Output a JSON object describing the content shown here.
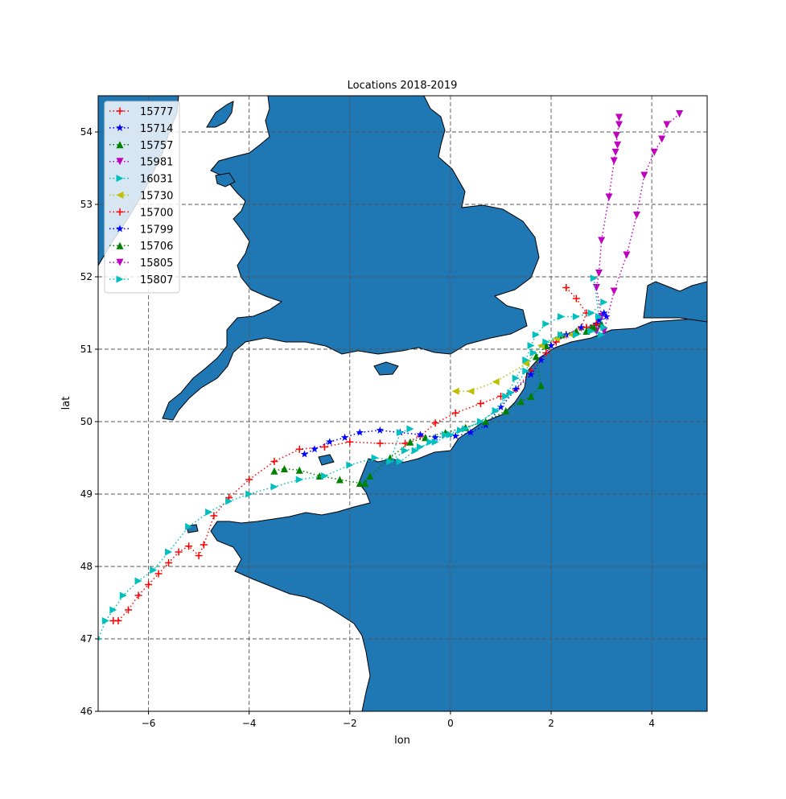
{
  "chart_data": {
    "type": "line",
    "title": "Locations 2018-2019",
    "xlabel": "lon",
    "ylabel": "lat",
    "xlim": [
      -7,
      5.1
    ],
    "ylim": [
      46,
      54.5
    ],
    "xticks": [
      -6,
      -4,
      -2,
      0,
      2,
      4
    ],
    "yticks": [
      46,
      47,
      48,
      49,
      50,
      51,
      52,
      53,
      54
    ],
    "grid": true,
    "legend_position": "upper-left",
    "colors": {
      "land": "#1f77b4",
      "sea": "#ffffff"
    },
    "series": [
      {
        "name": "15777",
        "color": "#ff0000",
        "marker": "plus",
        "points": [
          [
            2.3,
            51.85
          ],
          [
            2.5,
            51.7
          ],
          [
            2.7,
            51.5
          ],
          [
            2.6,
            51.3
          ],
          [
            2.3,
            51.2
          ],
          [
            2.1,
            51.1
          ],
          [
            1.9,
            50.95
          ],
          [
            1.6,
            50.7
          ],
          [
            1.3,
            50.45
          ],
          [
            1.0,
            50.35
          ],
          [
            0.6,
            50.25
          ],
          [
            0.1,
            50.12
          ],
          [
            -0.3,
            49.98
          ],
          [
            -0.6,
            49.8
          ],
          [
            -0.9,
            49.7
          ],
          [
            -1.4,
            49.7
          ],
          [
            -2.0,
            49.72
          ],
          [
            -2.5,
            49.65
          ],
          [
            -3.0,
            49.62
          ],
          [
            -3.5,
            49.45
          ],
          [
            -4.0,
            49.2
          ],
          [
            -4.4,
            48.95
          ],
          [
            -4.7,
            48.7
          ],
          [
            -4.9,
            48.3
          ],
          [
            -5.0,
            48.15
          ],
          [
            -5.2,
            48.28
          ],
          [
            -5.4,
            48.2
          ],
          [
            -5.6,
            48.05
          ],
          [
            -5.8,
            47.9
          ],
          [
            -6.0,
            47.75
          ],
          [
            -6.2,
            47.6
          ],
          [
            -6.4,
            47.4
          ],
          [
            -6.6,
            47.25
          ],
          [
            -6.7,
            47.25
          ]
        ]
      },
      {
        "name": "15714",
        "color": "#0000ff",
        "marker": "star",
        "points": [
          [
            3.1,
            51.45
          ],
          [
            2.9,
            51.35
          ],
          [
            2.6,
            51.3
          ],
          [
            2.3,
            51.2
          ],
          [
            2.0,
            51.05
          ],
          [
            1.8,
            50.85
          ],
          [
            1.6,
            50.65
          ],
          [
            1.3,
            50.45
          ],
          [
            1.0,
            50.2
          ],
          [
            0.7,
            49.95
          ],
          [
            0.4,
            49.85
          ],
          [
            0.1,
            49.8
          ],
          [
            -0.3,
            49.78
          ],
          [
            -0.6,
            49.82
          ],
          [
            -1.0,
            49.85
          ],
          [
            -1.4,
            49.88
          ],
          [
            -1.8,
            49.85
          ],
          [
            -2.1,
            49.78
          ],
          [
            -2.4,
            49.72
          ],
          [
            -2.7,
            49.62
          ],
          [
            -2.9,
            49.55
          ]
        ]
      },
      {
        "name": "15757",
        "color": "#008000",
        "marker": "triangle-up",
        "points": [
          [
            3.0,
            51.35
          ],
          [
            2.8,
            51.3
          ],
          [
            2.5,
            51.25
          ],
          [
            2.2,
            51.2
          ],
          [
            1.9,
            51.05
          ],
          [
            1.7,
            50.9
          ],
          [
            1.8,
            50.5
          ],
          [
            1.6,
            50.35
          ],
          [
            1.4,
            50.28
          ],
          [
            1.1,
            50.15
          ],
          [
            0.7,
            50.0
          ],
          [
            0.3,
            49.92
          ],
          [
            -0.1,
            49.85
          ],
          [
            -0.5,
            49.78
          ],
          [
            -0.8,
            49.72
          ],
          [
            -1.2,
            49.5
          ],
          [
            -1.6,
            49.25
          ],
          [
            -1.7,
            49.15
          ],
          [
            -1.8,
            49.15
          ],
          [
            -2.2,
            49.2
          ],
          [
            -2.6,
            49.25
          ],
          [
            -3.0,
            49.33
          ],
          [
            -3.3,
            49.35
          ],
          [
            -3.5,
            49.32
          ]
        ]
      },
      {
        "name": "15981",
        "color": "#bf00bf",
        "marker": "triangle-down",
        "points": [
          [
            3.35,
            54.2
          ],
          [
            3.35,
            54.1
          ],
          [
            3.3,
            53.95
          ],
          [
            3.32,
            53.82
          ],
          [
            3.28,
            53.72
          ],
          [
            3.25,
            53.6
          ],
          [
            3.15,
            53.1
          ],
          [
            3.0,
            52.5
          ],
          [
            2.95,
            52.05
          ],
          [
            2.9,
            51.85
          ],
          [
            3.0,
            51.45
          ],
          [
            2.9,
            51.25
          ]
        ]
      },
      {
        "name": "16031",
        "color": "#00bfbf",
        "marker": "triangle-right",
        "points": [
          [
            3.05,
            51.65
          ],
          [
            2.8,
            51.5
          ],
          [
            2.5,
            51.45
          ],
          [
            2.2,
            51.45
          ],
          [
            1.9,
            51.35
          ],
          [
            1.7,
            51.2
          ],
          [
            1.6,
            51.05
          ],
          [
            1.5,
            50.85
          ],
          [
            1.3,
            50.6
          ],
          [
            1.1,
            50.35
          ],
          [
            0.9,
            50.15
          ],
          [
            0.6,
            50.0
          ],
          [
            0.3,
            49.9
          ],
          [
            0.0,
            49.82
          ],
          [
            -0.3,
            49.72
          ],
          [
            -0.6,
            49.65
          ],
          [
            -0.9,
            49.6
          ],
          [
            -1.2,
            49.45
          ],
          [
            -1.0,
            49.85
          ],
          [
            -0.8,
            49.9
          ]
        ]
      },
      {
        "name": "15730",
        "color": "#bfbf00",
        "marker": "triangle-left",
        "points": [
          [
            0.1,
            50.42
          ],
          [
            0.4,
            50.42
          ],
          [
            0.9,
            50.55
          ],
          [
            1.5,
            50.8
          ],
          [
            1.8,
            51.05
          ],
          [
            2.1,
            51.15
          ],
          [
            2.4,
            51.2
          ]
        ]
      },
      {
        "name": "15700",
        "color": "#ff0000",
        "marker": "plus",
        "points": [
          [
            2.9,
            51.35
          ],
          [
            2.7,
            51.3
          ]
        ]
      },
      {
        "name": "15799",
        "color": "#0000ff",
        "marker": "star",
        "points": [
          [
            3.05,
            51.5
          ],
          [
            2.95,
            51.4
          ]
        ]
      },
      {
        "name": "15706",
        "color": "#008000",
        "marker": "triangle-up",
        "points": [
          [
            2.85,
            51.3
          ],
          [
            2.7,
            51.25
          ]
        ]
      },
      {
        "name": "15805",
        "color": "#bf00bf",
        "marker": "triangle-down",
        "points": [
          [
            4.55,
            54.25
          ],
          [
            4.3,
            54.1
          ],
          [
            4.2,
            53.9
          ],
          [
            4.05,
            53.72
          ],
          [
            3.85,
            53.4
          ],
          [
            3.7,
            52.85
          ],
          [
            3.5,
            52.3
          ],
          [
            3.25,
            51.8
          ],
          [
            3.05,
            51.25
          ]
        ]
      },
      {
        "name": "15807",
        "color": "#00bfbf",
        "marker": "triangle-right",
        "points": [
          [
            2.85,
            51.98
          ],
          [
            2.95,
            51.45
          ],
          [
            3.05,
            51.3
          ],
          [
            3.0,
            51.2
          ],
          [
            2.8,
            51.25
          ],
          [
            2.5,
            51.2
          ],
          [
            2.2,
            51.2
          ],
          [
            1.9,
            51.1
          ],
          [
            1.65,
            50.95
          ],
          [
            1.5,
            50.7
          ],
          [
            1.2,
            50.4
          ],
          [
            0.9,
            50.15
          ],
          [
            0.6,
            50.0
          ],
          [
            0.2,
            49.88
          ],
          [
            -0.1,
            49.82
          ],
          [
            -0.4,
            49.72
          ],
          [
            -0.7,
            49.6
          ],
          [
            -1.0,
            49.45
          ],
          [
            -1.5,
            49.5
          ],
          [
            -2.0,
            49.4
          ],
          [
            -2.5,
            49.25
          ],
          [
            -3.0,
            49.2
          ],
          [
            -3.5,
            49.1
          ],
          [
            -4.0,
            49.0
          ],
          [
            -4.4,
            48.9
          ],
          [
            -4.8,
            48.75
          ],
          [
            -5.2,
            48.55
          ],
          [
            -5.6,
            48.2
          ],
          [
            -5.9,
            47.95
          ],
          [
            -6.2,
            47.8
          ],
          [
            -6.5,
            47.6
          ],
          [
            -6.7,
            47.4
          ],
          [
            -6.85,
            47.25
          ],
          [
            -7.0,
            47.0
          ]
        ]
      }
    ]
  }
}
